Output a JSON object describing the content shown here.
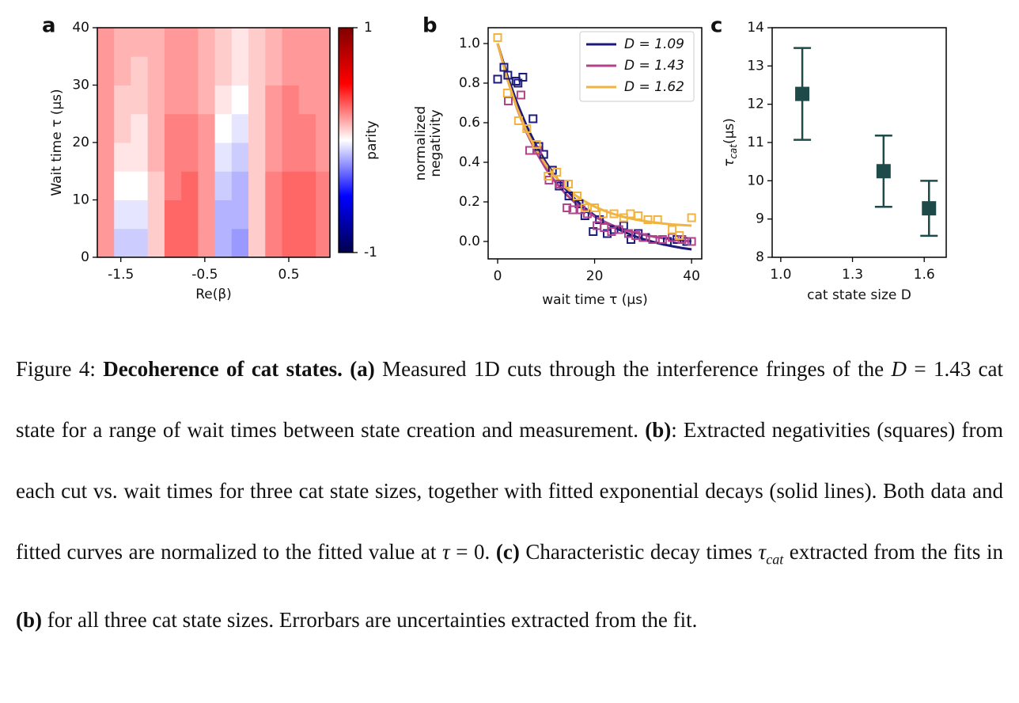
{
  "chart_data": [
    {
      "type": "heatmap",
      "panel_label": "a",
      "x_label": "Re(β)",
      "y_label": "Wait time τ (μs)",
      "colorbar_label": "parity",
      "colormap": "seismic",
      "zlim": [
        -1,
        1
      ],
      "colorbar_ticks": [
        1,
        -1
      ],
      "xlim": [
        -1.78,
        0.99
      ],
      "ylim": [
        0,
        40
      ],
      "xticks": [
        -1.5,
        -0.5,
        0.5
      ],
      "yticks": [
        0,
        10,
        20,
        30,
        40
      ],
      "x": [
        -1.68,
        -1.48,
        -1.28,
        -1.08,
        -0.88,
        -0.68,
        -0.48,
        -0.28,
        -0.08,
        0.12,
        0.32,
        0.52,
        0.72,
        0.92
      ],
      "y": [
        2.5,
        7.5,
        12.5,
        17.5,
        22.5,
        27.5,
        32.5,
        37.5
      ],
      "z": [
        [
          0.2,
          -0.1,
          -0.1,
          0.1,
          0.3,
          0.3,
          0.2,
          -0.15,
          -0.2,
          0.1,
          0.25,
          0.3,
          0.3,
          0.25
        ],
        [
          0.2,
          -0.05,
          -0.05,
          0.1,
          0.3,
          0.3,
          0.2,
          -0.15,
          -0.15,
          0.1,
          0.25,
          0.3,
          0.3,
          0.25
        ],
        [
          0.2,
          0.0,
          0.0,
          0.1,
          0.25,
          0.3,
          0.2,
          -0.1,
          -0.15,
          0.1,
          0.25,
          0.3,
          0.3,
          0.25
        ],
        [
          0.2,
          0.05,
          0.05,
          0.15,
          0.25,
          0.25,
          0.2,
          -0.05,
          -0.1,
          0.1,
          0.2,
          0.25,
          0.25,
          0.2
        ],
        [
          0.2,
          0.1,
          0.05,
          0.15,
          0.25,
          0.25,
          0.2,
          0.0,
          -0.05,
          0.1,
          0.2,
          0.25,
          0.25,
          0.2
        ],
        [
          0.2,
          0.1,
          0.1,
          0.15,
          0.2,
          0.2,
          0.15,
          0.05,
          0.0,
          0.1,
          0.2,
          0.25,
          0.2,
          0.2
        ],
        [
          0.2,
          0.15,
          0.1,
          0.15,
          0.2,
          0.2,
          0.15,
          0.1,
          0.05,
          0.1,
          0.15,
          0.2,
          0.2,
          0.2
        ],
        [
          0.2,
          0.15,
          0.15,
          0.15,
          0.2,
          0.2,
          0.15,
          0.1,
          0.05,
          0.1,
          0.15,
          0.2,
          0.2,
          0.2
        ]
      ]
    },
    {
      "type": "scatter",
      "panel_label": "b",
      "x_label": "wait time τ (μs)",
      "y_label": [
        "normalized",
        "negativity"
      ],
      "xlim": [
        -1.96,
        42.1
      ],
      "ylim": [
        -0.088,
        1.08
      ],
      "xticks": [
        0,
        20,
        40
      ],
      "yticks": [
        {
          "value": 0,
          "label": "0.0"
        },
        {
          "value": 0.2,
          "label": "0.2"
        },
        {
          "value": 0.4,
          "label": "0.4"
        },
        {
          "value": 0.6,
          "label": "0.6"
        },
        {
          "value": 0.8,
          "label": "0.8"
        },
        {
          "value": 1,
          "label": "1.0"
        }
      ],
      "legend": "upper right",
      "fit_x": [
        0,
        2,
        4,
        6,
        8,
        10,
        12,
        14,
        16,
        18,
        20,
        22,
        24,
        26,
        28,
        30,
        32,
        34,
        36,
        38,
        40
      ],
      "series": [
        {
          "name": "D = 1.09",
          "color": "#1c1a7a",
          "x": [
            0,
            1.3,
            2.1,
            3.8,
            4.2,
            5.2,
            7.3,
            8.5,
            9.5,
            11.3,
            12.7,
            13.7,
            14.7,
            16.8,
            18,
            19.7,
            21,
            22.6,
            24,
            26,
            27.5,
            29,
            30.5,
            32,
            35,
            37,
            39
          ],
          "values": [
            0.82,
            0.88,
            0.84,
            0.81,
            0.8,
            0.83,
            0.62,
            0.48,
            0.44,
            0.36,
            0.28,
            0.29,
            0.23,
            0.19,
            0.13,
            0.05,
            0.11,
            0.04,
            0.06,
            0.08,
            0.01,
            0.04,
            0.02,
            0.01,
            0.0,
            0.01,
            0.0
          ],
          "fit_values": [
            1.0,
            0.838,
            0.7,
            0.582,
            0.483,
            0.398,
            0.326,
            0.265,
            0.213,
            0.168,
            0.131,
            0.099,
            0.072,
            0.049,
            0.029,
            0.012,
            -0.002,
            -0.014,
            -0.024,
            -0.033,
            -0.04
          ]
        },
        {
          "name": "D = 1.43",
          "color": "#b2428a",
          "x": [
            0,
            2.2,
            4.8,
            6.6,
            8.2,
            10.6,
            12.8,
            14.3,
            15.5,
            17.2,
            18.5,
            20.5,
            22,
            23.5,
            25,
            27,
            28.5,
            30,
            32,
            34,
            36,
            38,
            40
          ],
          "values": [
            1.03,
            0.71,
            0.74,
            0.46,
            0.46,
            0.31,
            0.29,
            0.17,
            0.16,
            0.16,
            0.14,
            0.08,
            0.07,
            0.05,
            0.06,
            0.04,
            0.03,
            0.02,
            0.01,
            0.01,
            0.02,
            0.01,
            0.0
          ],
          "fit_values": [
            1.0,
            0.82,
            0.671,
            0.549,
            0.449,
            0.366,
            0.298,
            0.241,
            0.195,
            0.157,
            0.126,
            0.1,
            0.078,
            0.061,
            0.046,
            0.035,
            0.025,
            0.017,
            0.01,
            0.005,
            0.0
          ]
        },
        {
          "name": "D = 1.62",
          "color": "#f2b440",
          "x": [
            0,
            2,
            4.3,
            6,
            8,
            10.4,
            12.2,
            14.6,
            16.4,
            18,
            20,
            21.8,
            24,
            26,
            27.4,
            29,
            31,
            33,
            36,
            37.5,
            40
          ],
          "values": [
            1.03,
            0.75,
            0.61,
            0.57,
            0.49,
            0.33,
            0.35,
            0.29,
            0.23,
            0.17,
            0.17,
            0.14,
            0.14,
            0.12,
            0.14,
            0.13,
            0.11,
            0.11,
            0.06,
            0.03,
            0.12
          ],
          "fit_values": [
            1.0,
            0.819,
            0.674,
            0.556,
            0.462,
            0.385,
            0.324,
            0.274,
            0.234,
            0.202,
            0.176,
            0.155,
            0.138,
            0.124,
            0.113,
            0.104,
            0.097,
            0.091,
            0.086,
            0.083,
            0.08
          ]
        }
      ]
    },
    {
      "type": "errorbar",
      "panel_label": "c",
      "x_label": "cat state size D",
      "y_label": {
        "symbol": "τ",
        "subscript": "cat",
        "unit": "(μs)"
      },
      "xlim": [
        0.964,
        1.692
      ],
      "ylim": [
        8,
        14
      ],
      "xticks": [
        {
          "value": 1,
          "label": "1.0"
        },
        {
          "value": 1.3,
          "label": "1.3"
        },
        {
          "value": 1.6,
          "label": "1.6"
        }
      ],
      "yticks": [
        8,
        9,
        10,
        11,
        12,
        13,
        14
      ],
      "color": "#1e4a4a",
      "x": [
        1.09,
        1.43,
        1.62
      ],
      "values": [
        12.27,
        10.25,
        9.28
      ],
      "errors": [
        1.2,
        0.93,
        0.72
      ]
    }
  ],
  "caption": [
    "Figure 4: ",
    {
      "b": "Decoherence of cat states."
    },
    " ",
    {
      "b": "(a)"
    },
    " Measured 1D cuts through the interference fringes of the ",
    {
      "i": "D"
    },
    " = 1.43 cat state for a range of wait times between state creation and measurement. ",
    {
      "b": "(b)"
    },
    ": Extracted negativities (squares) from each cut vs. wait times for three cat state sizes, together with fitted exponential decays (solid lines). Both data and fitted curves are normalized to the fitted value at ",
    {
      "i": "τ"
    },
    " = 0. ",
    {
      "b": "(c)"
    },
    " Characteristic decay times ",
    {
      "i": "τ"
    },
    {
      "sub": "cat"
    },
    " extracted from the fits in ",
    {
      "b": "(b)"
    },
    " for all three cat state sizes. Errorbars are uncertainties extracted from the fit."
  ]
}
